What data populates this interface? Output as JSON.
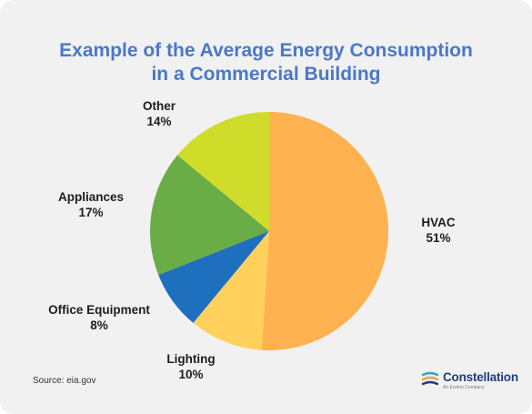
{
  "chart_data": {
    "type": "pie",
    "title_lines": [
      "Example of the Average Energy Consumption",
      "in a Commercial Building"
    ],
    "slices": [
      {
        "label": "HVAC",
        "value": 51,
        "value_label": "51%",
        "color": "#ffb24f"
      },
      {
        "label": "Lighting",
        "value": 10,
        "value_label": "10%",
        "color": "#ffd15c"
      },
      {
        "label": "Office Equipment",
        "value": 8,
        "value_label": "8%",
        "color": "#1f6fbf"
      },
      {
        "label": "Appliances",
        "value": 17,
        "value_label": "17%",
        "color": "#6aac45"
      },
      {
        "label": "Other",
        "value": 14,
        "value_label": "14%",
        "color": "#cfdd2a"
      }
    ],
    "start_angle_deg": 0,
    "direction": "clockwise"
  },
  "footer": {
    "source": "Source: eia.gov",
    "brand": "Constellation",
    "brand_tagline": "An Exelon Company"
  },
  "colors": {
    "title": "#4a78c8",
    "background": "#f1f1f2",
    "brand": "#1f3f7a"
  }
}
